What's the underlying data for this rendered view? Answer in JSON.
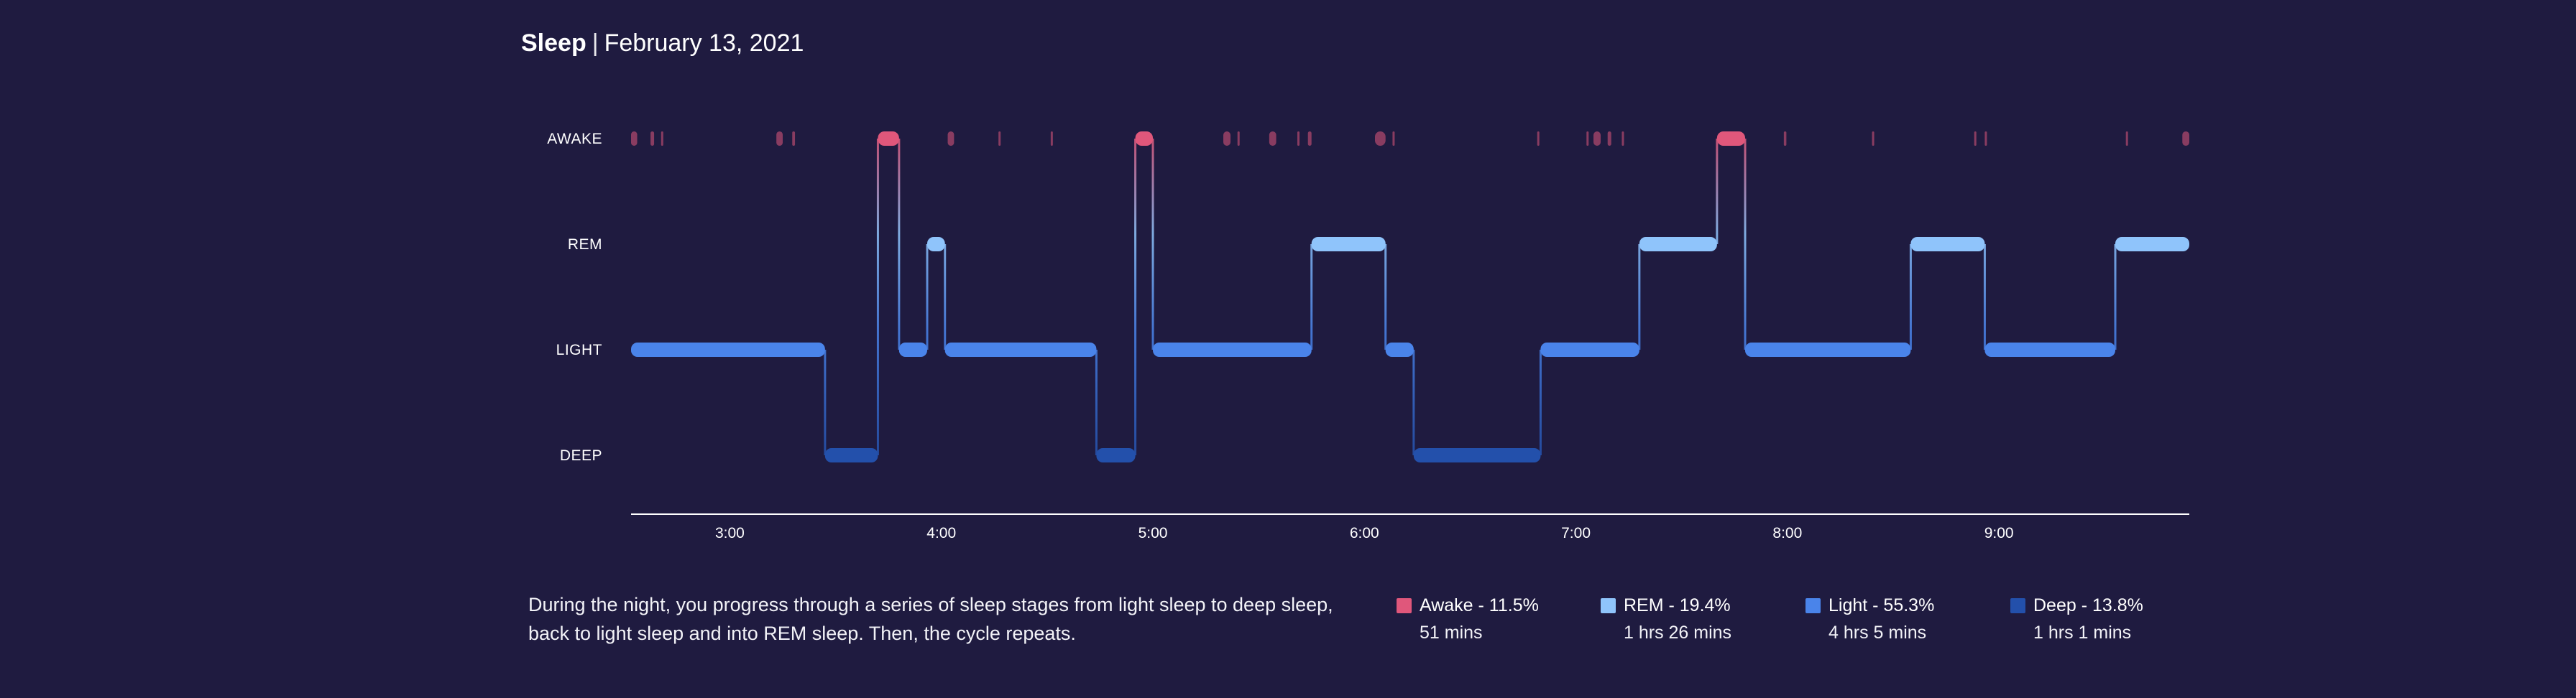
{
  "header": {
    "title": "Sleep",
    "separator": "|",
    "date": "February 13, 2021"
  },
  "description": "During the night, you progress through a series of sleep stages from light sleep to deep sleep, back to light sleep and into REM sleep. Then, the cycle repeats.",
  "colors": {
    "background": "#1f1b40",
    "awake": "#e0577b",
    "rem": "#8fc4fb",
    "light": "#4a84ea",
    "deep": "#2350ab"
  },
  "legend": [
    {
      "key": "awake",
      "label": "Awake - 11.5%",
      "duration": "51 mins"
    },
    {
      "key": "rem",
      "label": "REM - 19.4%",
      "duration": "1 hrs 26 mins"
    },
    {
      "key": "light",
      "label": "Light - 55.3%",
      "duration": "4 hrs 5 mins"
    },
    {
      "key": "deep",
      "label": "Deep - 13.8%",
      "duration": "1 hrs 1 mins"
    }
  ],
  "chart_data": {
    "type": "area",
    "subtype": "sleep-stage-hypnogram",
    "y_categories": [
      "AWAKE",
      "REM",
      "LIGHT",
      "DEEP"
    ],
    "x_ticks": [
      "3:00",
      "4:00",
      "5:00",
      "6:00",
      "7:00",
      "8:00",
      "9:00"
    ],
    "x_tick_hours": [
      3,
      4,
      5,
      6,
      7,
      8,
      9
    ],
    "x_range_hours": [
      2.533,
      9.9
    ],
    "grid": false,
    "segments": [
      {
        "stage": "light",
        "start": 2.533,
        "end": 3.45
      },
      {
        "stage": "deep",
        "start": 3.45,
        "end": 3.7
      },
      {
        "stage": "awake",
        "start": 3.7,
        "end": 3.8
      },
      {
        "stage": "light",
        "start": 3.8,
        "end": 3.933
      },
      {
        "stage": "rem",
        "start": 3.933,
        "end": 4.017
      },
      {
        "stage": "light",
        "start": 4.017,
        "end": 4.733
      },
      {
        "stage": "deep",
        "start": 4.733,
        "end": 4.917
      },
      {
        "stage": "awake",
        "start": 4.917,
        "end": 5.0
      },
      {
        "stage": "light",
        "start": 5.0,
        "end": 5.75
      },
      {
        "stage": "rem",
        "start": 5.75,
        "end": 6.1
      },
      {
        "stage": "light",
        "start": 6.1,
        "end": 6.233
      },
      {
        "stage": "deep",
        "start": 6.233,
        "end": 6.833
      },
      {
        "stage": "light",
        "start": 6.833,
        "end": 7.3
      },
      {
        "stage": "rem",
        "start": 7.3,
        "end": 7.667
      },
      {
        "stage": "awake",
        "start": 7.667,
        "end": 7.8
      },
      {
        "stage": "light",
        "start": 7.8,
        "end": 8.583
      },
      {
        "stage": "rem",
        "start": 8.583,
        "end": 8.933
      },
      {
        "stage": "light",
        "start": 8.933,
        "end": 9.55
      },
      {
        "stage": "rem",
        "start": 9.55,
        "end": 9.9
      }
    ],
    "brief_awakenings": [
      {
        "start": 2.533,
        "end": 2.562
      },
      {
        "start": 2.625,
        "end": 2.642
      },
      {
        "start": 2.675,
        "end": 2.68
      },
      {
        "start": 3.22,
        "end": 3.25
      },
      {
        "start": 3.295,
        "end": 3.308
      },
      {
        "start": 4.03,
        "end": 4.06
      },
      {
        "start": 4.27,
        "end": 4.278
      },
      {
        "start": 4.517,
        "end": 4.525
      },
      {
        "start": 5.333,
        "end": 5.367
      },
      {
        "start": 5.4,
        "end": 5.408
      },
      {
        "start": 5.55,
        "end": 5.583
      },
      {
        "start": 5.683,
        "end": 5.69
      },
      {
        "start": 5.733,
        "end": 5.75
      },
      {
        "start": 6.05,
        "end": 6.1
      },
      {
        "start": 6.133,
        "end": 6.14
      },
      {
        "start": 6.817,
        "end": 6.825
      },
      {
        "start": 7.05,
        "end": 7.058
      },
      {
        "start": 7.083,
        "end": 7.117
      },
      {
        "start": 7.15,
        "end": 7.167
      },
      {
        "start": 7.217,
        "end": 7.225
      },
      {
        "start": 7.983,
        "end": 7.995
      },
      {
        "start": 8.4,
        "end": 8.408
      },
      {
        "start": 8.883,
        "end": 8.891
      },
      {
        "start": 8.933,
        "end": 8.941
      },
      {
        "start": 9.6,
        "end": 9.608
      },
      {
        "start": 9.867,
        "end": 9.9
      }
    ]
  }
}
